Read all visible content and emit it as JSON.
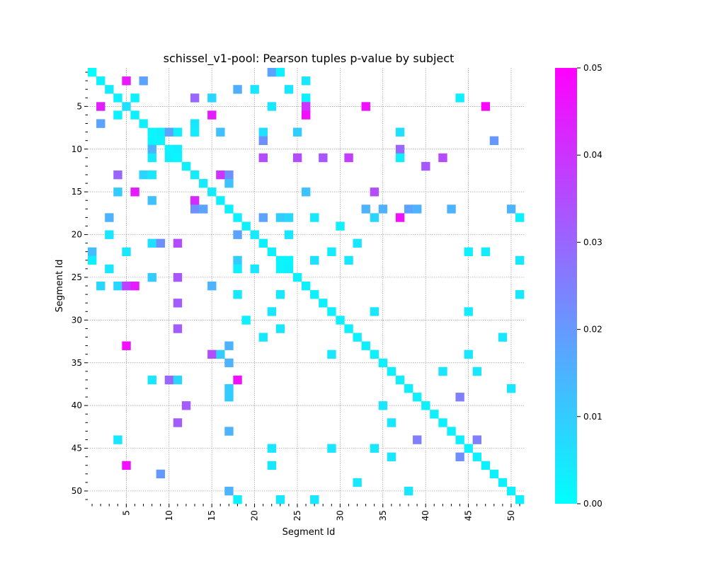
{
  "chart_data": {
    "type": "heatmap",
    "title": "schissel_v1-pool: Pearson tuples p-value by subject",
    "xlabel": "Segment Id",
    "ylabel": "Segment Id",
    "x_range": [
      1,
      51
    ],
    "y_range": [
      1,
      51
    ],
    "x_tick_labels": [
      "5",
      "10",
      "15",
      "20",
      "25",
      "30",
      "35",
      "40",
      "45",
      "50"
    ],
    "y_tick_labels": [
      "5",
      "10",
      "15",
      "20",
      "25",
      "30",
      "35",
      "40",
      "45",
      "50"
    ],
    "colormap": "cool",
    "color_low": "#00ffff",
    "color_high": "#ff00ff",
    "colorbar_range": [
      0.0,
      0.05
    ],
    "colorbar_tick_labels": [
      "0.00",
      "0.01",
      "0.02",
      "0.03",
      "0.04",
      "0.05"
    ],
    "grid": true,
    "cells": [
      [
        1,
        1,
        0.0
      ],
      [
        22,
        1,
        0.018
      ],
      [
        23,
        1,
        0.003
      ],
      [
        2,
        2,
        0.003
      ],
      [
        5,
        2,
        0.045
      ],
      [
        7,
        2,
        0.018
      ],
      [
        26,
        2,
        0.005
      ],
      [
        3,
        3,
        0.004
      ],
      [
        18,
        3,
        0.016
      ],
      [
        20,
        3,
        0.005
      ],
      [
        24,
        3,
        0.005
      ],
      [
        4,
        4,
        0.003
      ],
      [
        6,
        4,
        0.003
      ],
      [
        13,
        4,
        0.03
      ],
      [
        15,
        4,
        0.008
      ],
      [
        26,
        4,
        0.003
      ],
      [
        44,
        4,
        0.003
      ],
      [
        2,
        5,
        0.044
      ],
      [
        5,
        5,
        0.006
      ],
      [
        22,
        5,
        0.005
      ],
      [
        26,
        5,
        0.04
      ],
      [
        33,
        5,
        0.047
      ],
      [
        47,
        5,
        0.049
      ],
      [
        4,
        6,
        0.003
      ],
      [
        6,
        6,
        0.003
      ],
      [
        15,
        6,
        0.045
      ],
      [
        26,
        6,
        0.047
      ],
      [
        2,
        7,
        0.018
      ],
      [
        7,
        7,
        0.003
      ],
      [
        13,
        7,
        0.005
      ],
      [
        8,
        8,
        0.002
      ],
      [
        9,
        8,
        0.003
      ],
      [
        10,
        8,
        0.018
      ],
      [
        11,
        8,
        0.003
      ],
      [
        13,
        8,
        0.004
      ],
      [
        16,
        8,
        0.012
      ],
      [
        21,
        8,
        0.006
      ],
      [
        25,
        8,
        0.01
      ],
      [
        37,
        8,
        0.006
      ],
      [
        8,
        9,
        0.002
      ],
      [
        9,
        9,
        0.002
      ],
      [
        21,
        9,
        0.022
      ],
      [
        48,
        9,
        0.02
      ],
      [
        8,
        10,
        0.015
      ],
      [
        10,
        10,
        0.002
      ],
      [
        11,
        10,
        0.003
      ],
      [
        37,
        10,
        0.03
      ],
      [
        8,
        11,
        0.004
      ],
      [
        10,
        11,
        0.003
      ],
      [
        11,
        11,
        0.002
      ],
      [
        21,
        11,
        0.035
      ],
      [
        25,
        11,
        0.035
      ],
      [
        28,
        11,
        0.033
      ],
      [
        31,
        11,
        0.038
      ],
      [
        37,
        11,
        0.003
      ],
      [
        42,
        11,
        0.035
      ],
      [
        12,
        12,
        0.003
      ],
      [
        40,
        12,
        0.033
      ],
      [
        4,
        13,
        0.03
      ],
      [
        7,
        13,
        0.008
      ],
      [
        8,
        13,
        0.005
      ],
      [
        13,
        13,
        0.004
      ],
      [
        16,
        13,
        0.04
      ],
      [
        17,
        13,
        0.022
      ],
      [
        14,
        14,
        0.004
      ],
      [
        17,
        14,
        0.012
      ],
      [
        4,
        15,
        0.01
      ],
      [
        6,
        15,
        0.045
      ],
      [
        15,
        15,
        0.004
      ],
      [
        26,
        15,
        0.012
      ],
      [
        34,
        15,
        0.035
      ],
      [
        8,
        16,
        0.012
      ],
      [
        13,
        16,
        0.042
      ],
      [
        16,
        16,
        0.003
      ],
      [
        13,
        17,
        0.022
      ],
      [
        14,
        17,
        0.018
      ],
      [
        17,
        17,
        0.003
      ],
      [
        33,
        17,
        0.015
      ],
      [
        35,
        17,
        0.015
      ],
      [
        38,
        17,
        0.018
      ],
      [
        39,
        17,
        0.015
      ],
      [
        43,
        17,
        0.015
      ],
      [
        50,
        17,
        0.015
      ],
      [
        3,
        18,
        0.015
      ],
      [
        18,
        18,
        0.003
      ],
      [
        21,
        18,
        0.018
      ],
      [
        23,
        18,
        0.01
      ],
      [
        24,
        18,
        0.008
      ],
      [
        27,
        18,
        0.005
      ],
      [
        34,
        18,
        0.008
      ],
      [
        37,
        18,
        0.047
      ],
      [
        51,
        18,
        0.003
      ],
      [
        19,
        19,
        0.003
      ],
      [
        30,
        19,
        0.003
      ],
      [
        3,
        20,
        0.005
      ],
      [
        18,
        20,
        0.018
      ],
      [
        20,
        20,
        0.004
      ],
      [
        24,
        20,
        0.005
      ],
      [
        8,
        21,
        0.006
      ],
      [
        9,
        21,
        0.022
      ],
      [
        11,
        21,
        0.035
      ],
      [
        21,
        21,
        0.003
      ],
      [
        32,
        21,
        0.005
      ],
      [
        1,
        22,
        0.013
      ],
      [
        5,
        22,
        0.005
      ],
      [
        22,
        22,
        0.003
      ],
      [
        29,
        22,
        0.004
      ],
      [
        45,
        22,
        0.003
      ],
      [
        47,
        22,
        0.004
      ],
      [
        1,
        23,
        0.003
      ],
      [
        18,
        23,
        0.01
      ],
      [
        23,
        23,
        0.002
      ],
      [
        24,
        23,
        0.002
      ],
      [
        27,
        23,
        0.006
      ],
      [
        31,
        23,
        0.005
      ],
      [
        51,
        23,
        0.005
      ],
      [
        3,
        24,
        0.005
      ],
      [
        18,
        24,
        0.003
      ],
      [
        20,
        24,
        0.005
      ],
      [
        23,
        24,
        0.002
      ],
      [
        24,
        24,
        0.003
      ],
      [
        8,
        25,
        0.01
      ],
      [
        11,
        25,
        0.033
      ],
      [
        25,
        25,
        0.003
      ],
      [
        2,
        26,
        0.008
      ],
      [
        4,
        26,
        0.008
      ],
      [
        5,
        26,
        0.037
      ],
      [
        6,
        26,
        0.045
      ],
      [
        15,
        26,
        0.015
      ],
      [
        26,
        26,
        0.003
      ],
      [
        18,
        27,
        0.005
      ],
      [
        23,
        27,
        0.005
      ],
      [
        27,
        27,
        0.003
      ],
      [
        51,
        27,
        0.005
      ],
      [
        11,
        28,
        0.032
      ],
      [
        28,
        28,
        0.003
      ],
      [
        22,
        29,
        0.005
      ],
      [
        29,
        29,
        0.003
      ],
      [
        34,
        29,
        0.005
      ],
      [
        45,
        29,
        0.004
      ],
      [
        19,
        30,
        0.003
      ],
      [
        30,
        30,
        0.003
      ],
      [
        11,
        31,
        0.032
      ],
      [
        23,
        31,
        0.005
      ],
      [
        31,
        31,
        0.003
      ],
      [
        21,
        32,
        0.005
      ],
      [
        32,
        32,
        0.003
      ],
      [
        49,
        32,
        0.005
      ],
      [
        5,
        33,
        0.047
      ],
      [
        17,
        33,
        0.015
      ],
      [
        33,
        33,
        0.003
      ],
      [
        15,
        34,
        0.035
      ],
      [
        16,
        34,
        0.01
      ],
      [
        29,
        34,
        0.005
      ],
      [
        34,
        34,
        0.003
      ],
      [
        45,
        34,
        0.005
      ],
      [
        17,
        35,
        0.015
      ],
      [
        35,
        35,
        0.003
      ],
      [
        36,
        36,
        0.003
      ],
      [
        42,
        36,
        0.005
      ],
      [
        46,
        36,
        0.005
      ],
      [
        8,
        37,
        0.005
      ],
      [
        10,
        37,
        0.03
      ],
      [
        11,
        37,
        0.008
      ],
      [
        18,
        37,
        0.047
      ],
      [
        37,
        37,
        0.003
      ],
      [
        17,
        38,
        0.01
      ],
      [
        38,
        38,
        0.003
      ],
      [
        50,
        38,
        0.005
      ],
      [
        17,
        39,
        0.01
      ],
      [
        39,
        39,
        0.003
      ],
      [
        44,
        39,
        0.025
      ],
      [
        12,
        40,
        0.032
      ],
      [
        35,
        40,
        0.005
      ],
      [
        40,
        40,
        0.003
      ],
      [
        41,
        41,
        0.003
      ],
      [
        11,
        42,
        0.032
      ],
      [
        36,
        42,
        0.005
      ],
      [
        42,
        42,
        0.003
      ],
      [
        17,
        43,
        0.015
      ],
      [
        43,
        43,
        0.003
      ],
      [
        4,
        44,
        0.005
      ],
      [
        39,
        44,
        0.025
      ],
      [
        44,
        44,
        0.003
      ],
      [
        46,
        44,
        0.025
      ],
      [
        22,
        45,
        0.005
      ],
      [
        29,
        45,
        0.005
      ],
      [
        34,
        45,
        0.005
      ],
      [
        45,
        45,
        0.003
      ],
      [
        36,
        46,
        0.005
      ],
      [
        44,
        46,
        0.022
      ],
      [
        46,
        46,
        0.003
      ],
      [
        5,
        47,
        0.047
      ],
      [
        22,
        47,
        0.005
      ],
      [
        47,
        47,
        0.003
      ],
      [
        9,
        48,
        0.02
      ],
      [
        48,
        48,
        0.003
      ],
      [
        32,
        49,
        0.005
      ],
      [
        49,
        49,
        0.003
      ],
      [
        17,
        50,
        0.015
      ],
      [
        38,
        50,
        0.005
      ],
      [
        50,
        50,
        0.003
      ],
      [
        18,
        51,
        0.003
      ],
      [
        23,
        51,
        0.005
      ],
      [
        27,
        51,
        0.005
      ],
      [
        51,
        51,
        0.003
      ]
    ]
  }
}
